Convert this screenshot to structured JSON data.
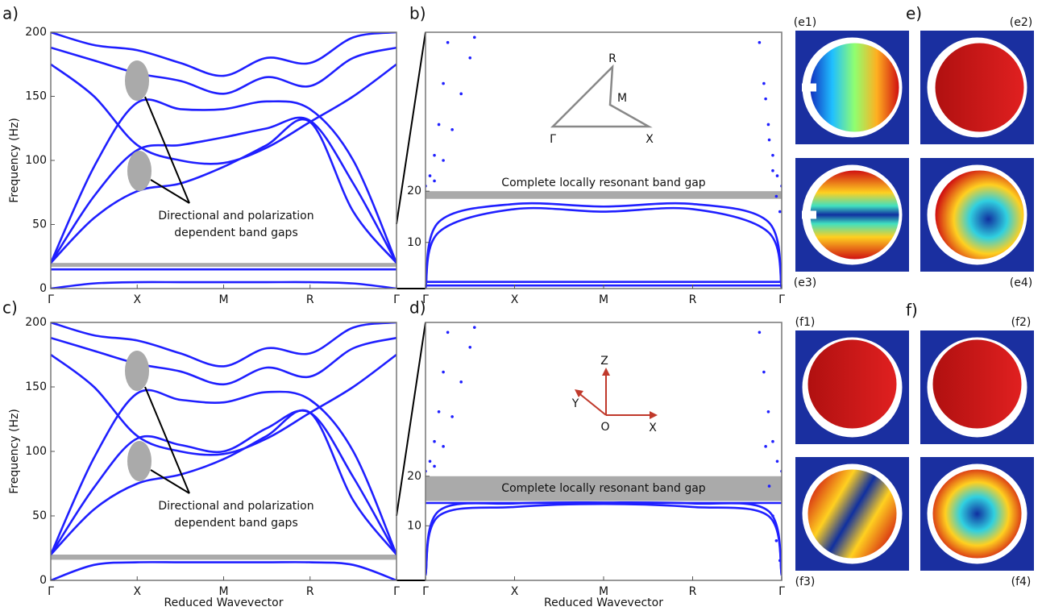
{
  "chart_data": [
    {
      "type": "line",
      "title": "a)",
      "y_label": "Frequency (Hz)",
      "xlim": [
        0,
        4
      ],
      "ylim": [
        0,
        200
      ],
      "xticks": [
        {
          "value": 0,
          "label": "Γ"
        },
        {
          "value": 1,
          "label": "X"
        },
        {
          "value": 2,
          "label": "M"
        },
        {
          "value": 3,
          "label": "R"
        },
        {
          "value": 4,
          "label": "Γ"
        }
      ],
      "yticks": [
        0,
        50,
        100,
        150,
        200
      ],
      "gap": [
        17,
        20
      ],
      "gap_color": "#aaaaaa",
      "annotation": [
        "Directional and polarization",
        "dependent band gaps"
      ],
      "series": [
        {
          "color": "#1f1fff",
          "style": "line",
          "x": [
            0,
            0.5,
            1,
            1.5,
            2,
            2.5,
            3,
            3.5,
            4
          ],
          "values": [
            0,
            4,
            5,
            5,
            5,
            5,
            5,
            4,
            0
          ]
        },
        {
          "color": "#1f1fff",
          "style": "line",
          "x": [
            0,
            0.5,
            1,
            1.5,
            2,
            2.5,
            3,
            3.5,
            4
          ],
          "values": [
            15,
            15,
            15,
            15,
            15,
            15,
            15,
            15,
            15
          ]
        },
        {
          "color": "#1f1fff",
          "style": "line",
          "x": [
            0,
            0.5,
            1,
            1.5,
            2,
            2.5,
            3,
            3.5,
            4
          ],
          "values": [
            20,
            55,
            76,
            82,
            95,
            112,
            130,
            60,
            20
          ]
        },
        {
          "color": "#1f1fff",
          "style": "line",
          "x": [
            0,
            0.5,
            1,
            1.5,
            2,
            2.5,
            3,
            3.5,
            4
          ],
          "values": [
            20,
            72,
            108,
            112,
            118,
            125,
            131,
            82,
            20
          ]
        },
        {
          "color": "#1f1fff",
          "style": "line",
          "x": [
            0,
            0.5,
            1,
            1.5,
            2,
            2.5,
            3,
            3.5,
            4
          ],
          "values": [
            20,
            95,
            145,
            140,
            140,
            146,
            140,
            100,
            20
          ]
        },
        {
          "color": "#1f1fff",
          "style": "line",
          "x": [
            0,
            0.5,
            1,
            1.5,
            2,
            2.5,
            3,
            3.5,
            4
          ],
          "values": [
            175,
            150,
            112,
            100,
            98,
            110,
            130,
            150,
            175
          ]
        },
        {
          "color": "#1f1fff",
          "style": "line",
          "x": [
            0,
            0.5,
            1,
            1.5,
            2,
            2.5,
            3,
            3.5,
            4
          ],
          "values": [
            188,
            178,
            168,
            162,
            152,
            165,
            158,
            180,
            188
          ]
        },
        {
          "color": "#1f1fff",
          "style": "line",
          "x": [
            0,
            0.5,
            1,
            1.5,
            2,
            2.5,
            3,
            3.5,
            4
          ],
          "values": [
            200,
            190,
            186,
            176,
            166,
            180,
            176,
            196,
            200
          ]
        }
      ]
    },
    {
      "type": "line",
      "title": "b)",
      "xlim": [
        0,
        4
      ],
      "ylim": [
        1,
        51
      ],
      "xticks": [
        {
          "value": 0,
          "label": "Γ"
        },
        {
          "value": 1,
          "label": "X"
        },
        {
          "value": 2,
          "label": "M"
        },
        {
          "value": 3,
          "label": "R"
        },
        {
          "value": 4,
          "label": "Γ"
        }
      ],
      "yticks": [
        10,
        20
      ],
      "gap": [
        18.5,
        20
      ],
      "gap_color": "#aaaaaa",
      "gap_label": "Complete locally resonant band gap",
      "inset": "path",
      "inset_labels": [
        "R",
        "M",
        "Γ",
        "X"
      ],
      "series": [
        {
          "color": "#1f1fff",
          "style": "line",
          "x": [
            0,
            0.15,
            1,
            2,
            3,
            3.85,
            4
          ],
          "values": [
            1,
            14,
            17.5,
            17,
            17.5,
            14,
            1
          ]
        },
        {
          "color": "#1f1fff",
          "style": "line",
          "x": [
            0,
            0.15,
            1,
            2,
            3,
            3.85,
            4
          ],
          "values": [
            1,
            12,
            16.5,
            16,
            16.5,
            12,
            1
          ]
        },
        {
          "color": "#1f1fff",
          "style": "line",
          "x": [
            0,
            1,
            2,
            3,
            4
          ],
          "values": [
            2.3,
            2.3,
            2.3,
            2.3,
            2.3
          ]
        },
        {
          "color": "#1f1fff",
          "style": "line",
          "x": [
            0,
            1,
            2,
            3,
            4
          ],
          "values": [
            1.6,
            1.6,
            1.6,
            1.6,
            1.6
          ]
        },
        {
          "color": "#1f1fff",
          "style": "dots",
          "x": [
            0,
            0.05,
            0.1,
            0.15,
            0.2,
            0.25
          ],
          "values": [
            21,
            23,
            27,
            33,
            41,
            49
          ]
        },
        {
          "color": "#1f1fff",
          "style": "dots",
          "x": [
            0.1,
            0.2,
            0.3,
            0.4,
            0.5,
            0.55
          ],
          "values": [
            22,
            26,
            32,
            39,
            46,
            50
          ]
        },
        {
          "color": "#1f1fff",
          "style": "dots",
          "x": [
            4,
            3.95,
            3.9,
            3.85,
            3.8,
            3.75
          ],
          "values": [
            21,
            23,
            27,
            33,
            41,
            49
          ]
        },
        {
          "color": "#1f1fff",
          "style": "dots",
          "x": [
            3.98,
            3.94,
            3.9,
            3.86,
            3.82
          ],
          "values": [
            16,
            19,
            24,
            30,
            38
          ]
        }
      ]
    },
    {
      "type": "line",
      "title": "c)",
      "y_label": "Frequency (Hz)",
      "x_label": "Reduced Wavevector",
      "xlim": [
        0,
        4
      ],
      "ylim": [
        0,
        200
      ],
      "xticks": [
        {
          "value": 0,
          "label": "Γ"
        },
        {
          "value": 1,
          "label": "X"
        },
        {
          "value": 2,
          "label": "M"
        },
        {
          "value": 3,
          "label": "R"
        },
        {
          "value": 4,
          "label": "Γ"
        }
      ],
      "yticks": [
        0,
        50,
        100,
        150,
        200
      ],
      "gap": [
        16,
        20
      ],
      "gap_color": "#aaaaaa",
      "annotation": [
        "Directional and polarization",
        "dependent band gaps"
      ],
      "series": [
        {
          "color": "#1f1fff",
          "style": "line",
          "x": [
            0,
            0.5,
            1,
            1.5,
            2,
            2.5,
            3,
            3.5,
            4
          ],
          "values": [
            0,
            12,
            14,
            14,
            14,
            14,
            14,
            12,
            0
          ]
        },
        {
          "color": "#1f1fff",
          "style": "line",
          "x": [
            0,
            0.5,
            1,
            1.5,
            2,
            2.5,
            3,
            3.5,
            4
          ],
          "values": [
            20,
            55,
            75,
            82,
            94,
            112,
            130,
            62,
            20
          ]
        },
        {
          "color": "#1f1fff",
          "style": "line",
          "x": [
            0,
            0.5,
            1,
            1.5,
            2,
            2.5,
            3,
            3.5,
            4
          ],
          "values": [
            20,
            72,
            110,
            105,
            100,
            118,
            130,
            80,
            20
          ]
        },
        {
          "color": "#1f1fff",
          "style": "line",
          "x": [
            0,
            0.5,
            1,
            1.5,
            2,
            2.5,
            3,
            3.5,
            4
          ],
          "values": [
            20,
            95,
            145,
            140,
            138,
            146,
            140,
            100,
            20
          ]
        },
        {
          "color": "#1f1fff",
          "style": "line",
          "x": [
            0,
            0.5,
            1,
            1.5,
            2,
            2.5,
            3,
            3.5,
            4
          ],
          "values": [
            175,
            150,
            112,
            100,
            98,
            110,
            130,
            150,
            175
          ]
        },
        {
          "color": "#1f1fff",
          "style": "line",
          "x": [
            0,
            0.5,
            1,
            1.5,
            2,
            2.5,
            3,
            3.5,
            4
          ],
          "values": [
            188,
            178,
            168,
            162,
            152,
            165,
            158,
            180,
            188
          ]
        },
        {
          "color": "#1f1fff",
          "style": "line",
          "x": [
            0,
            0.5,
            1,
            1.5,
            2,
            2.5,
            3,
            3.5,
            4
          ],
          "values": [
            200,
            190,
            186,
            176,
            166,
            180,
            176,
            196,
            200
          ]
        }
      ]
    },
    {
      "type": "line",
      "title": "d)",
      "x_label": "Reduced Wavevector",
      "xlim": [
        0,
        4
      ],
      "ylim": [
        -1,
        51
      ],
      "xticks": [
        {
          "value": 0,
          "label": "Γ"
        },
        {
          "value": 1,
          "label": "X"
        },
        {
          "value": 2,
          "label": "M"
        },
        {
          "value": 3,
          "label": "R"
        },
        {
          "value": 4,
          "label": "Γ"
        }
      ],
      "yticks": [
        10,
        20
      ],
      "gap": [
        15,
        20
      ],
      "gap_color": "#aaaaaa",
      "gap_label": "Complete locally resonant band gap",
      "inset": "axes",
      "inset_labels": [
        "Z",
        "Y",
        "O",
        "X"
      ],
      "series": [
        {
          "color": "#1f1fff",
          "style": "line",
          "x": [
            0,
            0.15,
            1,
            2,
            3,
            3.85,
            4
          ],
          "values": [
            0,
            13,
            14.5,
            14.7,
            14.5,
            13,
            0
          ]
        },
        {
          "color": "#1f1fff",
          "style": "line",
          "x": [
            0,
            0.15,
            1,
            2,
            3,
            3.85,
            4
          ],
          "values": [
            0,
            12,
            13.8,
            14.4,
            13.8,
            12,
            0
          ]
        },
        {
          "color": "#1f1fff",
          "style": "line",
          "x": [
            0,
            1,
            2,
            3,
            4
          ],
          "values": [
            14.6,
            14.6,
            14.6,
            14.6,
            14.6
          ]
        },
        {
          "color": "#1f1fff",
          "style": "dots",
          "x": [
            0,
            0.05,
            0.1,
            0.15,
            0.2,
            0.25
          ],
          "values": [
            21,
            23,
            27,
            33,
            41,
            49
          ]
        },
        {
          "color": "#1f1fff",
          "style": "dots",
          "x": [
            0.1,
            0.2,
            0.3,
            0.4,
            0.5,
            0.55
          ],
          "values": [
            22,
            26,
            32,
            39,
            46,
            50
          ]
        },
        {
          "color": "#1f1fff",
          "style": "dots",
          "x": [
            4,
            3.95,
            3.9,
            3.85,
            3.8,
            3.75
          ],
          "values": [
            21,
            23,
            27,
            33,
            41,
            49
          ]
        },
        {
          "color": "#1f1fff",
          "style": "dots",
          "x": [
            3.98,
            3.94,
            3.9,
            3.86,
            3.82
          ],
          "values": [
            3,
            7,
            12,
            18,
            26
          ]
        }
      ]
    }
  ],
  "field_plots": [
    {
      "label": "e)",
      "panels": [
        "(e1)",
        "(e2)",
        "(e3)",
        "(e4)"
      ]
    },
    {
      "label": "f)",
      "panels": [
        "(f1)",
        "(f2)",
        "(f3)",
        "(f4)"
      ]
    }
  ]
}
